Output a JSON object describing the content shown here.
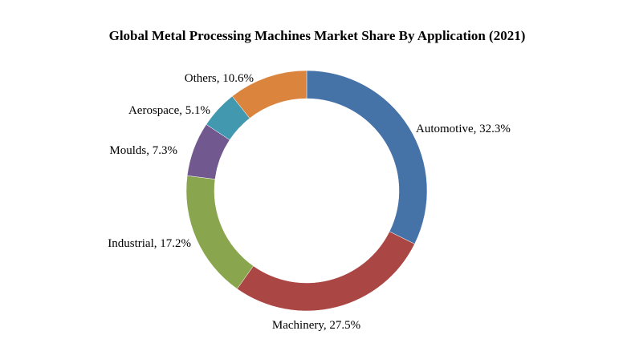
{
  "chart_data": {
    "type": "pie",
    "variant": "donut",
    "title": "Global Metal Processing Machines Market Share By Application (2021)",
    "unit": "%",
    "slices": [
      {
        "label": "Automotive",
        "value": 32.3,
        "label_text": "Automotive, 32.3%",
        "color": "#4572A7"
      },
      {
        "label": "Machinery",
        "value": 27.5,
        "label_text": "Machinery, 27.5%",
        "color": "#AA4643"
      },
      {
        "label": "Industrial",
        "value": 17.2,
        "label_text": "Industrial, 17.2%",
        "color": "#89A54E"
      },
      {
        "label": "Moulds",
        "value": 7.3,
        "label_text": "Moulds, 7.3%",
        "color": "#71588F"
      },
      {
        "label": "Aerospace",
        "value": 5.1,
        "label_text": "Aerospace, 5.1%",
        "color": "#4198AF"
      },
      {
        "label": "Others",
        "value": 10.6,
        "label_text": "Others, 10.6%",
        "color": "#DB843D"
      }
    ],
    "start_angle": "12 o'clock",
    "direction": "clockwise",
    "legend": "none (labels beside slices)"
  }
}
